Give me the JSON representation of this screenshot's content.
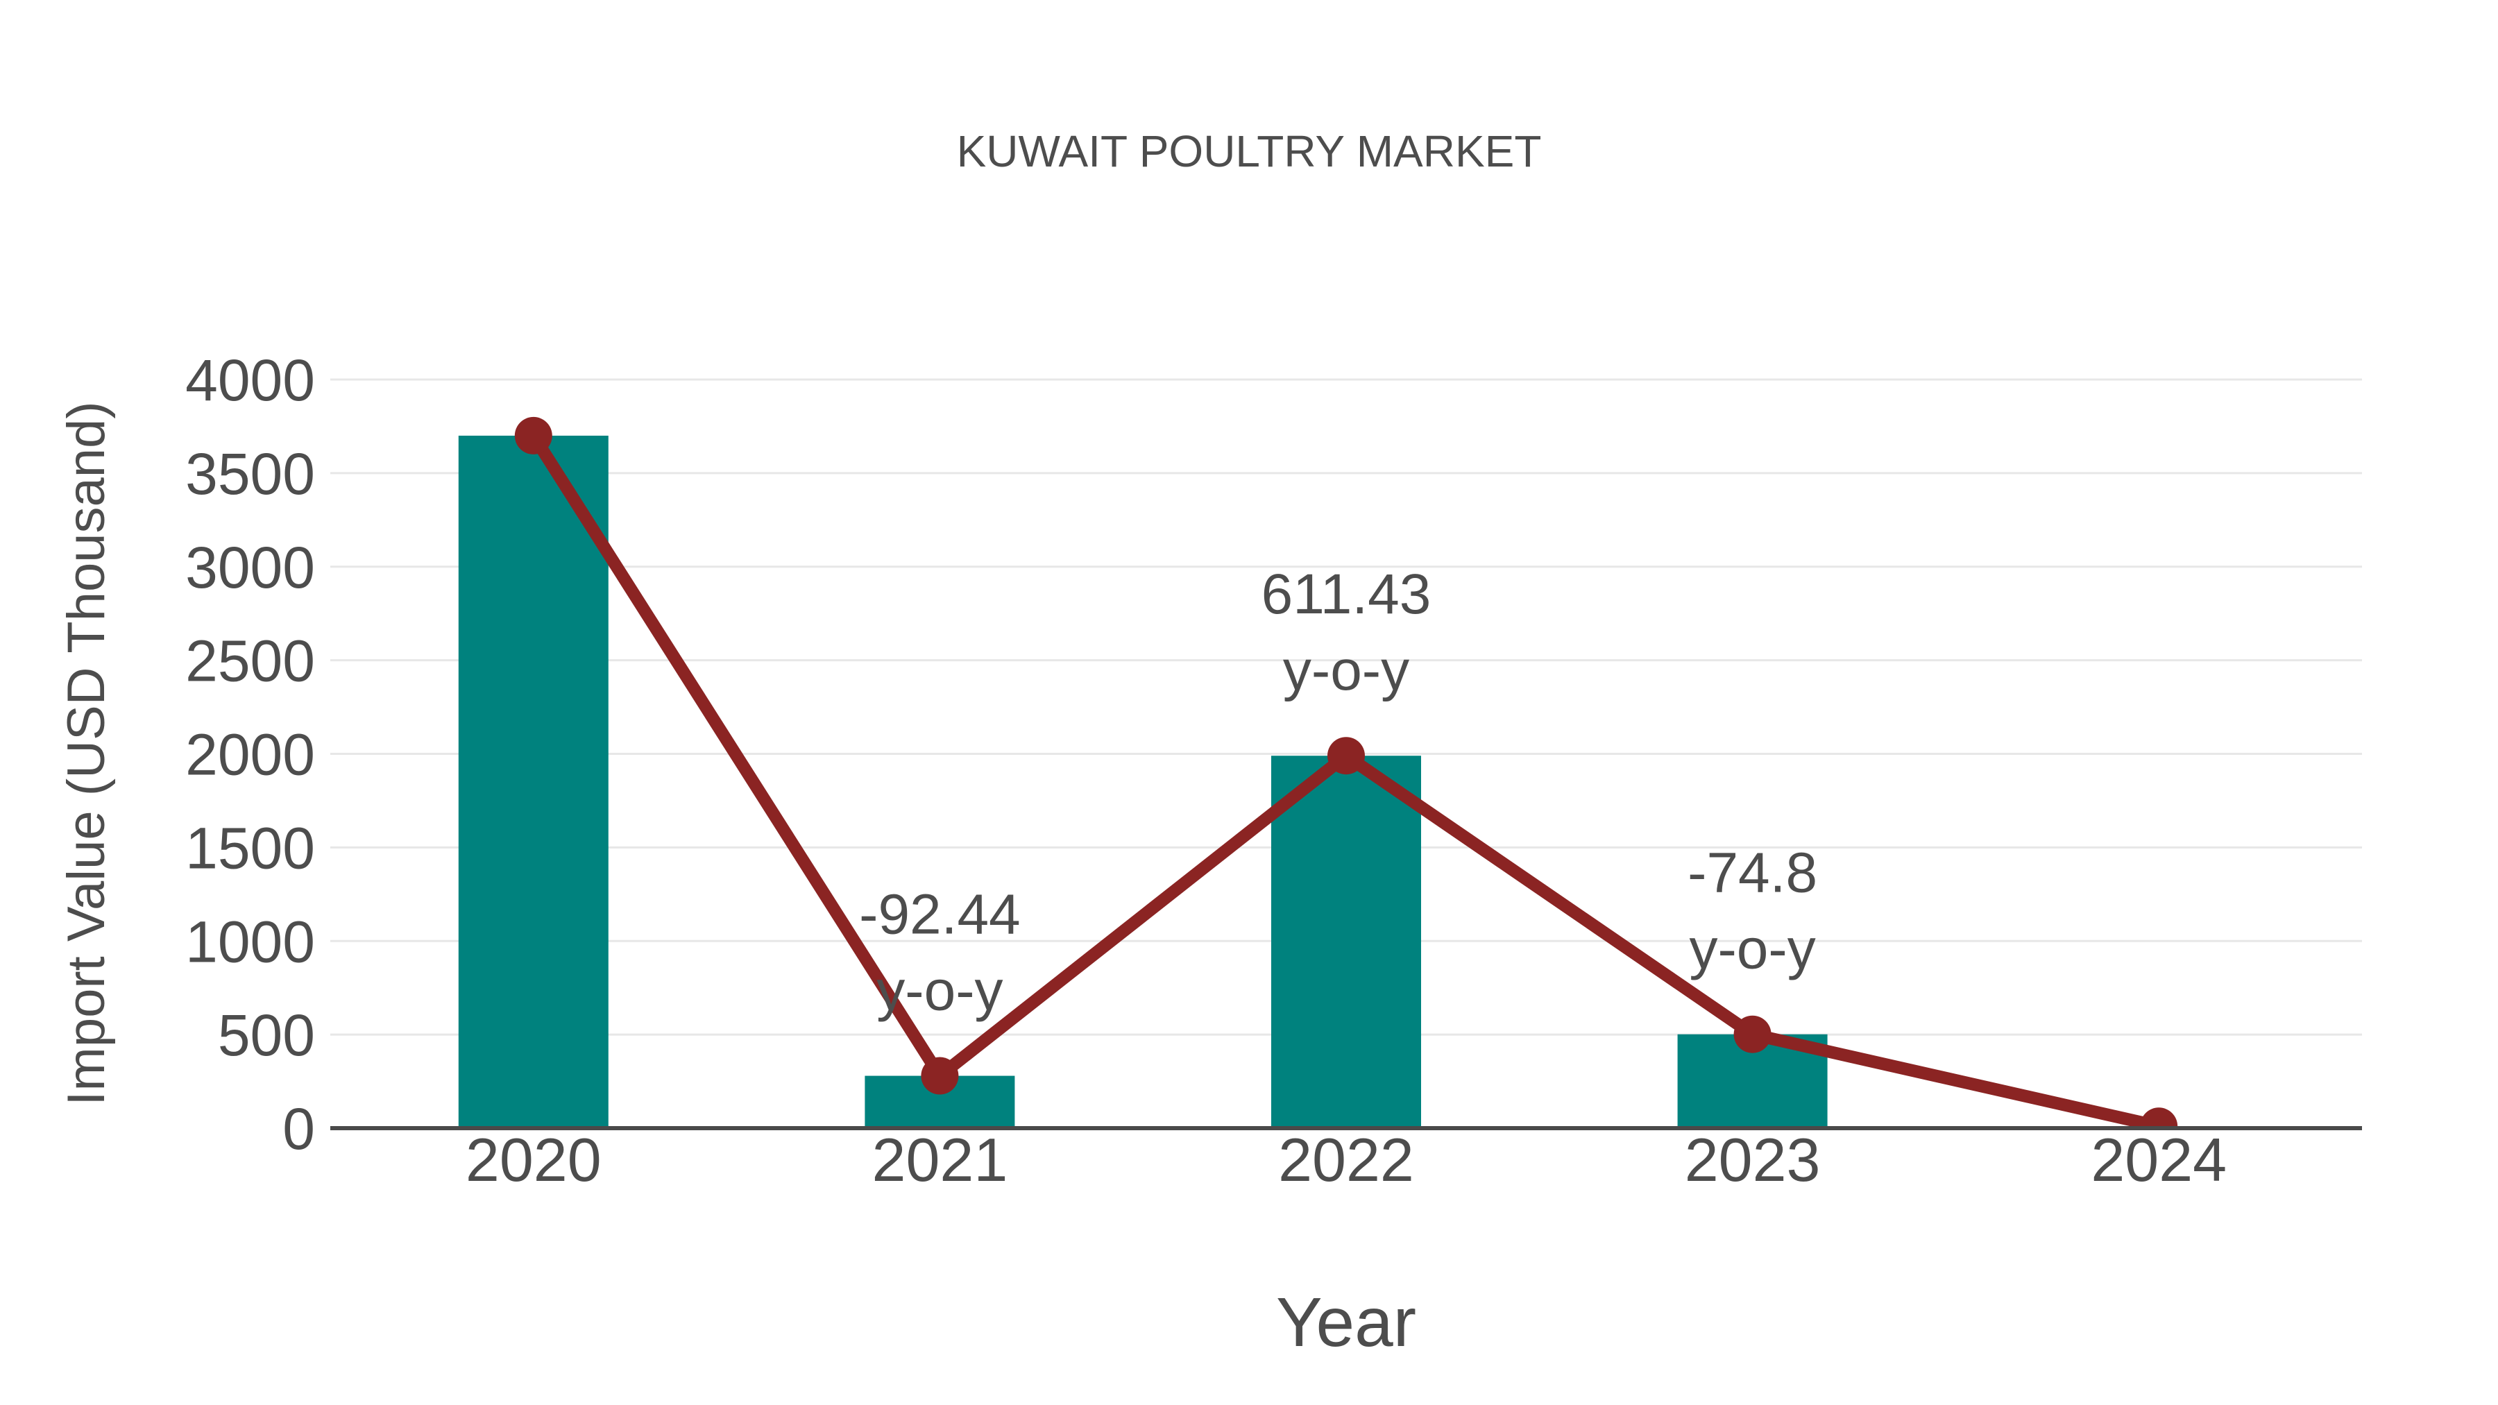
{
  "chart_data": {
    "type": "combo-bar-line",
    "title": "KUWAIT POULTRY MARKET",
    "xlabel": "Year",
    "ylabel": "Import Value (USD Thousand)",
    "categories": [
      "2020",
      "2021",
      "2022",
      "2023",
      "2024"
    ],
    "series": [
      {
        "name": "Import Value bars",
        "type": "bar",
        "color": "#00827E",
        "values": [
          3700,
          279.7,
          1989.9,
          501.5,
          10
        ]
      },
      {
        "name": "Import Value trend line",
        "type": "line",
        "color": "#8B2423",
        "marker": "circle",
        "values": [
          3700,
          279.7,
          1989.9,
          501.5,
          10
        ]
      }
    ],
    "annotations": [
      {
        "category": "2021",
        "value_label": "-92.44",
        "suffix_label": "y-o-y"
      },
      {
        "category": "2022",
        "value_label": "611.43",
        "suffix_label": "y-o-y"
      },
      {
        "category": "2023",
        "value_label": "-74.8",
        "suffix_label": "y-o-y"
      }
    ],
    "ylim": [
      0,
      4000
    ],
    "yticks": [
      0,
      500,
      1000,
      1500,
      2000,
      2500,
      3000,
      3500,
      4000
    ],
    "grid": "horizontal",
    "legend": false,
    "colors": {
      "bar": "#00827E",
      "line": "#8B2423",
      "text": "#4D4D4D",
      "grid": "#E7E7E7",
      "axis": "#4A4A4A",
      "background": "#FFFFFF"
    }
  }
}
